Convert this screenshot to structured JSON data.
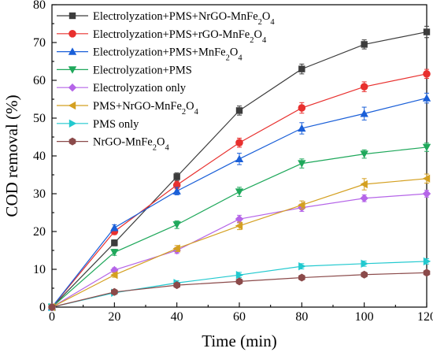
{
  "chart_data": {
    "type": "line",
    "xlabel": "Time (min)",
    "ylabel": "COD removal (%)",
    "xlim": [
      0,
      120
    ],
    "ylim": [
      0,
      80
    ],
    "x": [
      0,
      20,
      40,
      60,
      80,
      100,
      120
    ],
    "x_ticks": [
      "0",
      "20",
      "40",
      "60",
      "80",
      "100",
      "120"
    ],
    "y_ticks": [
      "0",
      "10",
      "20",
      "30",
      "40",
      "50",
      "60",
      "70",
      "80"
    ],
    "grid": false,
    "legend_position": "top-left",
    "series": [
      {
        "name": "Electrolyzation+PMS+NrGO-MnFe2O4",
        "legend": {
          "pre": "Electrolyzation+PMS+NrGO-MnFe",
          "sub": "2",
          "mid": "O",
          "sub2": "4"
        },
        "marker": "square",
        "color": "#3c3c3c",
        "values": [
          0,
          17,
          34.5,
          52,
          63,
          69.5,
          72.8
        ],
        "errors": [
          0.5,
          0.8,
          1.0,
          1.2,
          1.3,
          1.2,
          1.5
        ]
      },
      {
        "name": "Electrolyzation+PMS+rGO-MnFe2O4",
        "legend": {
          "pre": "Electrolyzation+PMS+rGO-MnFe",
          "sub": "2",
          "mid": "O",
          "sub2": "4"
        },
        "marker": "circle",
        "color": "#e8302e",
        "values": [
          0,
          20,
          32.3,
          43.5,
          52.7,
          58.3,
          61.7
        ],
        "errors": [
          0.5,
          0.8,
          1.0,
          1.2,
          1.4,
          1.3,
          1.2
        ]
      },
      {
        "name": "Electrolyzation+PMS+MnFe2O4",
        "legend": {
          "pre": "Electrolyzation+PMS+MnFe",
          "sub": "2",
          "mid": "O",
          "sub2": "4"
        },
        "marker": "triangle-up",
        "color": "#1a5fd8",
        "values": [
          0,
          21,
          30.7,
          39.2,
          47.3,
          51.2,
          55.3
        ],
        "errors": [
          0.5,
          0.8,
          1.0,
          1.5,
          1.5,
          1.7,
          1.3
        ]
      },
      {
        "name": "Electrolyzation+PMS",
        "legend": {
          "pre": "Electrolyzation+PMS"
        },
        "marker": "triangle-down",
        "color": "#1fa85b",
        "values": [
          0,
          14.5,
          21.8,
          30.5,
          38,
          40.5,
          42.3
        ],
        "errors": [
          0.5,
          0.8,
          1.0,
          1.2,
          1.2,
          1.1,
          1.1
        ]
      },
      {
        "name": "Electrolyzation only",
        "legend": {
          "pre": "Electrolyzation only"
        },
        "marker": "diamond",
        "color": "#b565e8",
        "values": [
          0,
          9.8,
          15,
          23.3,
          26.3,
          28.8,
          30
        ],
        "errors": [
          0.4,
          0.6,
          0.8,
          1.0,
          1.0,
          0.9,
          0.9
        ]
      },
      {
        "name": "PMS+NrGO-MnFe2O4",
        "legend": {
          "pre": "PMS+NrGO-MnFe",
          "sub": "2",
          "mid": "O",
          "sub2": "4"
        },
        "marker": "triangle-left",
        "color": "#d4a021",
        "values": [
          0,
          8.5,
          15.5,
          21.5,
          27,
          32.5,
          34
        ],
        "errors": [
          0.4,
          0.6,
          0.8,
          1.0,
          1.1,
          1.5,
          1.2
        ]
      },
      {
        "name": "PMS only",
        "legend": {
          "pre": "PMS only"
        },
        "marker": "triangle-right",
        "color": "#22c9cf",
        "values": [
          0,
          3.8,
          6.4,
          8.5,
          10.8,
          11.5,
          12.1
        ],
        "errors": [
          0.3,
          0.5,
          0.6,
          0.7,
          0.7,
          0.7,
          0.7
        ]
      },
      {
        "name": "NrGO-MnFe2O4",
        "legend": {
          "pre": "NrGO-MnFe",
          "sub": "2",
          "mid": "O",
          "sub2": "4"
        },
        "marker": "hexagon",
        "color": "#8b4a4a",
        "values": [
          0,
          4,
          5.8,
          6.8,
          7.8,
          8.6,
          9.1
        ],
        "errors": [
          0.3,
          0.4,
          0.5,
          0.6,
          0.6,
          0.6,
          0.6
        ]
      }
    ]
  }
}
